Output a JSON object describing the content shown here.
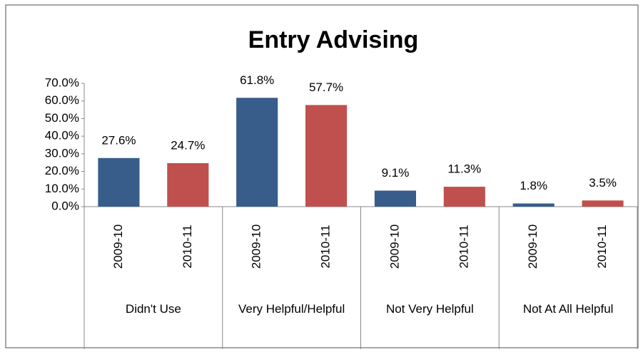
{
  "chart_data": {
    "type": "bar",
    "title": "Entry Advising",
    "categories": [
      "Didn't Use",
      "Very Helpful/Helpful",
      "Not Very Helpful",
      "Not At All Helpful"
    ],
    "series": [
      {
        "name": "2009-10",
        "color": "#385d8a",
        "values": [
          27.6,
          61.8,
          9.1,
          1.8
        ],
        "value_labels": [
          "27.6%",
          "61.8%",
          "9.1%",
          "1.8%"
        ]
      },
      {
        "name": "2010-11",
        "color": "#c0504d",
        "values": [
          24.7,
          57.7,
          11.3,
          3.5
        ],
        "value_labels": [
          "24.7%",
          "57.7%",
          "11.3%",
          "3.5%"
        ]
      }
    ],
    "ylim": [
      0,
      70
    ],
    "yticks": [
      {
        "value": 0,
        "label": "0.0%"
      },
      {
        "value": 10,
        "label": "10.0%"
      },
      {
        "value": 20,
        "label": "20.0%"
      },
      {
        "value": 30,
        "label": "30.0%"
      },
      {
        "value": 40,
        "label": "40.0%"
      },
      {
        "value": 50,
        "label": "50.0%"
      },
      {
        "value": 60,
        "label": "60.0%"
      },
      {
        "value": 70,
        "label": "70.0%"
      }
    ]
  }
}
